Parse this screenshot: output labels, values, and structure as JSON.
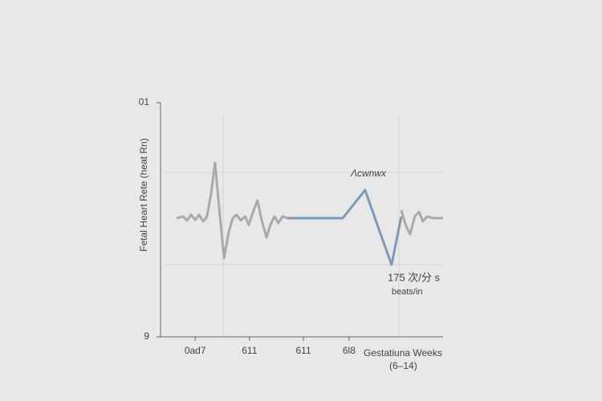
{
  "chart_data": {
    "type": "line",
    "y_label": "Fetal Heart Rete (heat Rn)",
    "x_label": "Gestatiuna Weeks",
    "x_label_sub": "(6–14)",
    "annotations": [
      "Λcwnwx",
      "175 次/分 s",
      "beats/in"
    ],
    "xlim": [
      6,
      14
    ],
    "xticks": [
      {
        "value": 6.88,
        "label": "0ad7"
      },
      {
        "value": 8.44,
        "label": "611"
      },
      {
        "value": 9.99,
        "label": "611"
      },
      {
        "value": 11.3,
        "label": "6l8"
      }
    ],
    "ylim": [
      9,
      10
    ],
    "yticks": [
      9,
      {
        "value": 10,
        "label": "01"
      }
    ],
    "x": [
      6.35,
      6.53,
      6.65,
      6.76,
      6.88,
      6.99,
      7.11,
      7.22,
      7.34,
      7.45,
      7.57,
      7.71,
      7.84,
      7.96,
      8.07,
      8.19,
      8.31,
      8.42,
      8.56,
      8.67,
      8.79,
      8.93,
      9.04,
      9.16,
      9.27,
      9.39,
      9.53,
      11.12,
      11.76,
      12.11,
      12.52,
      12.8,
      12.92,
      13.05,
      13.19,
      13.31,
      13.42,
      13.54,
      13.72,
      14.0
    ],
    "series": [
      {
        "color": "#a9a9a9",
        "values": [
          9.507,
          9.514,
          9.497,
          9.521,
          9.5,
          9.521,
          9.493,
          9.514,
          9.616,
          9.743,
          9.548,
          9.336,
          9.445,
          9.507,
          9.521,
          9.497,
          9.514,
          9.479,
          9.541,
          9.582,
          9.497,
          9.425,
          9.479,
          9.514,
          9.486,
          9.514,
          9.507,
          null,
          null,
          null,
          null,
          9.541,
          9.479,
          9.438,
          9.514,
          9.534,
          9.493,
          9.514,
          9.507,
          9.507
        ]
      },
      {
        "color": "#7d9bb8",
        "values": [
          null,
          null,
          null,
          null,
          null,
          null,
          null,
          null,
          null,
          null,
          null,
          null,
          null,
          null,
          null,
          null,
          null,
          null,
          null,
          null,
          null,
          null,
          null,
          null,
          null,
          null,
          9.507,
          9.507,
          9.627,
          9.479,
          9.308,
          9.514,
          null,
          null,
          null,
          null,
          null,
          null,
          null,
          null
        ]
      }
    ]
  }
}
